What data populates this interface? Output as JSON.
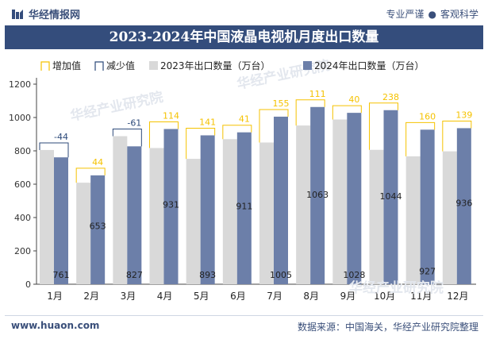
{
  "header": {
    "brand": "华经情报网",
    "tagline_left": "专业严谨",
    "tagline_sep": "●",
    "tagline_right": "客观科学"
  },
  "footer": {
    "website": "www.huaon.com",
    "source": "数据来源：中国海关，华经产业研究院整理"
  },
  "watermark": "华经产业研究院",
  "colors": {
    "title_bg": "#344d7c",
    "bar_2023": "#d9d9d9",
    "bar_2024": "#6c7fa9",
    "increase": "#f5c200",
    "decrease": "#2d4a7a"
  },
  "chart_data": {
    "type": "bar",
    "title": "2023-2024年中国液晶电视机月度出口数量",
    "categories": [
      "1月",
      "2月",
      "3月",
      "4月",
      "5月",
      "6月",
      "7月",
      "8月",
      "9月",
      "10月",
      "11月",
      "12月"
    ],
    "series": [
      {
        "name": "2023年出口数量（万台）",
        "values": [
          805,
          609,
          888,
          817,
          752,
          870,
          850,
          952,
          988,
          806,
          767,
          797
        ]
      },
      {
        "name": "2024年出口数量（万台）",
        "values": [
          761,
          653,
          827,
          931,
          893,
          911,
          1005,
          1063,
          1028,
          1044,
          927,
          936
        ]
      }
    ],
    "differences": [
      -44,
      44,
      -61,
      114,
      141,
      41,
      155,
      111,
      40,
      238,
      160,
      139
    ],
    "legend": [
      "增加值",
      "减少值",
      "2023年出口数量（万台）",
      "2024年出口数量（万台）"
    ],
    "legend_position": "top",
    "ylim": [
      0,
      1200
    ],
    "yticks": [
      0,
      200,
      400,
      600,
      800,
      1000,
      1200
    ],
    "grid": false
  }
}
